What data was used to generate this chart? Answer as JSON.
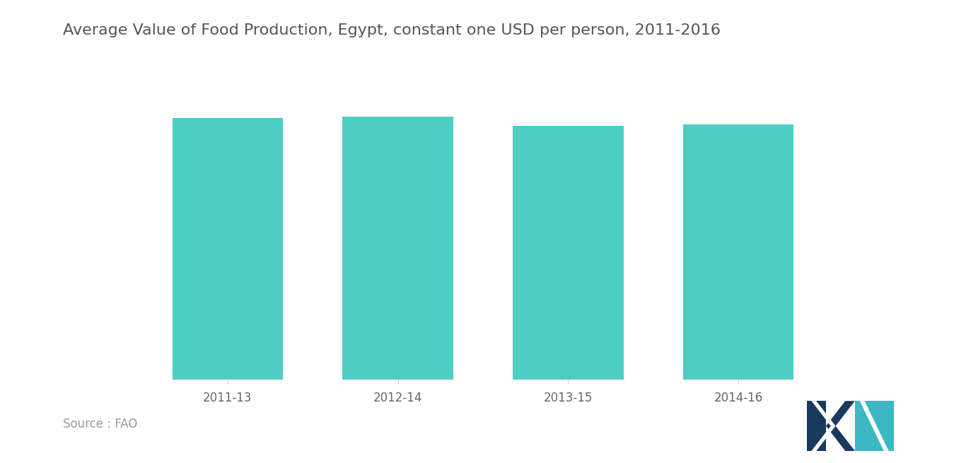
{
  "title": "Average Value of Food Production, Egypt, constant one USD per person, 2011-2016",
  "categories": [
    "2011-13",
    "2012-14",
    "2013-15",
    "2014-16"
  ],
  "values": [
    100,
    100.5,
    97,
    97.5
  ],
  "bar_color": "#4ECDC4",
  "background_color": "#ffffff",
  "title_fontsize": 16,
  "tick_fontsize": 12,
  "source_text": "Source : FAO",
  "source_fontsize": 12,
  "ylim": [
    0,
    115
  ],
  "bar_width": 0.65
}
